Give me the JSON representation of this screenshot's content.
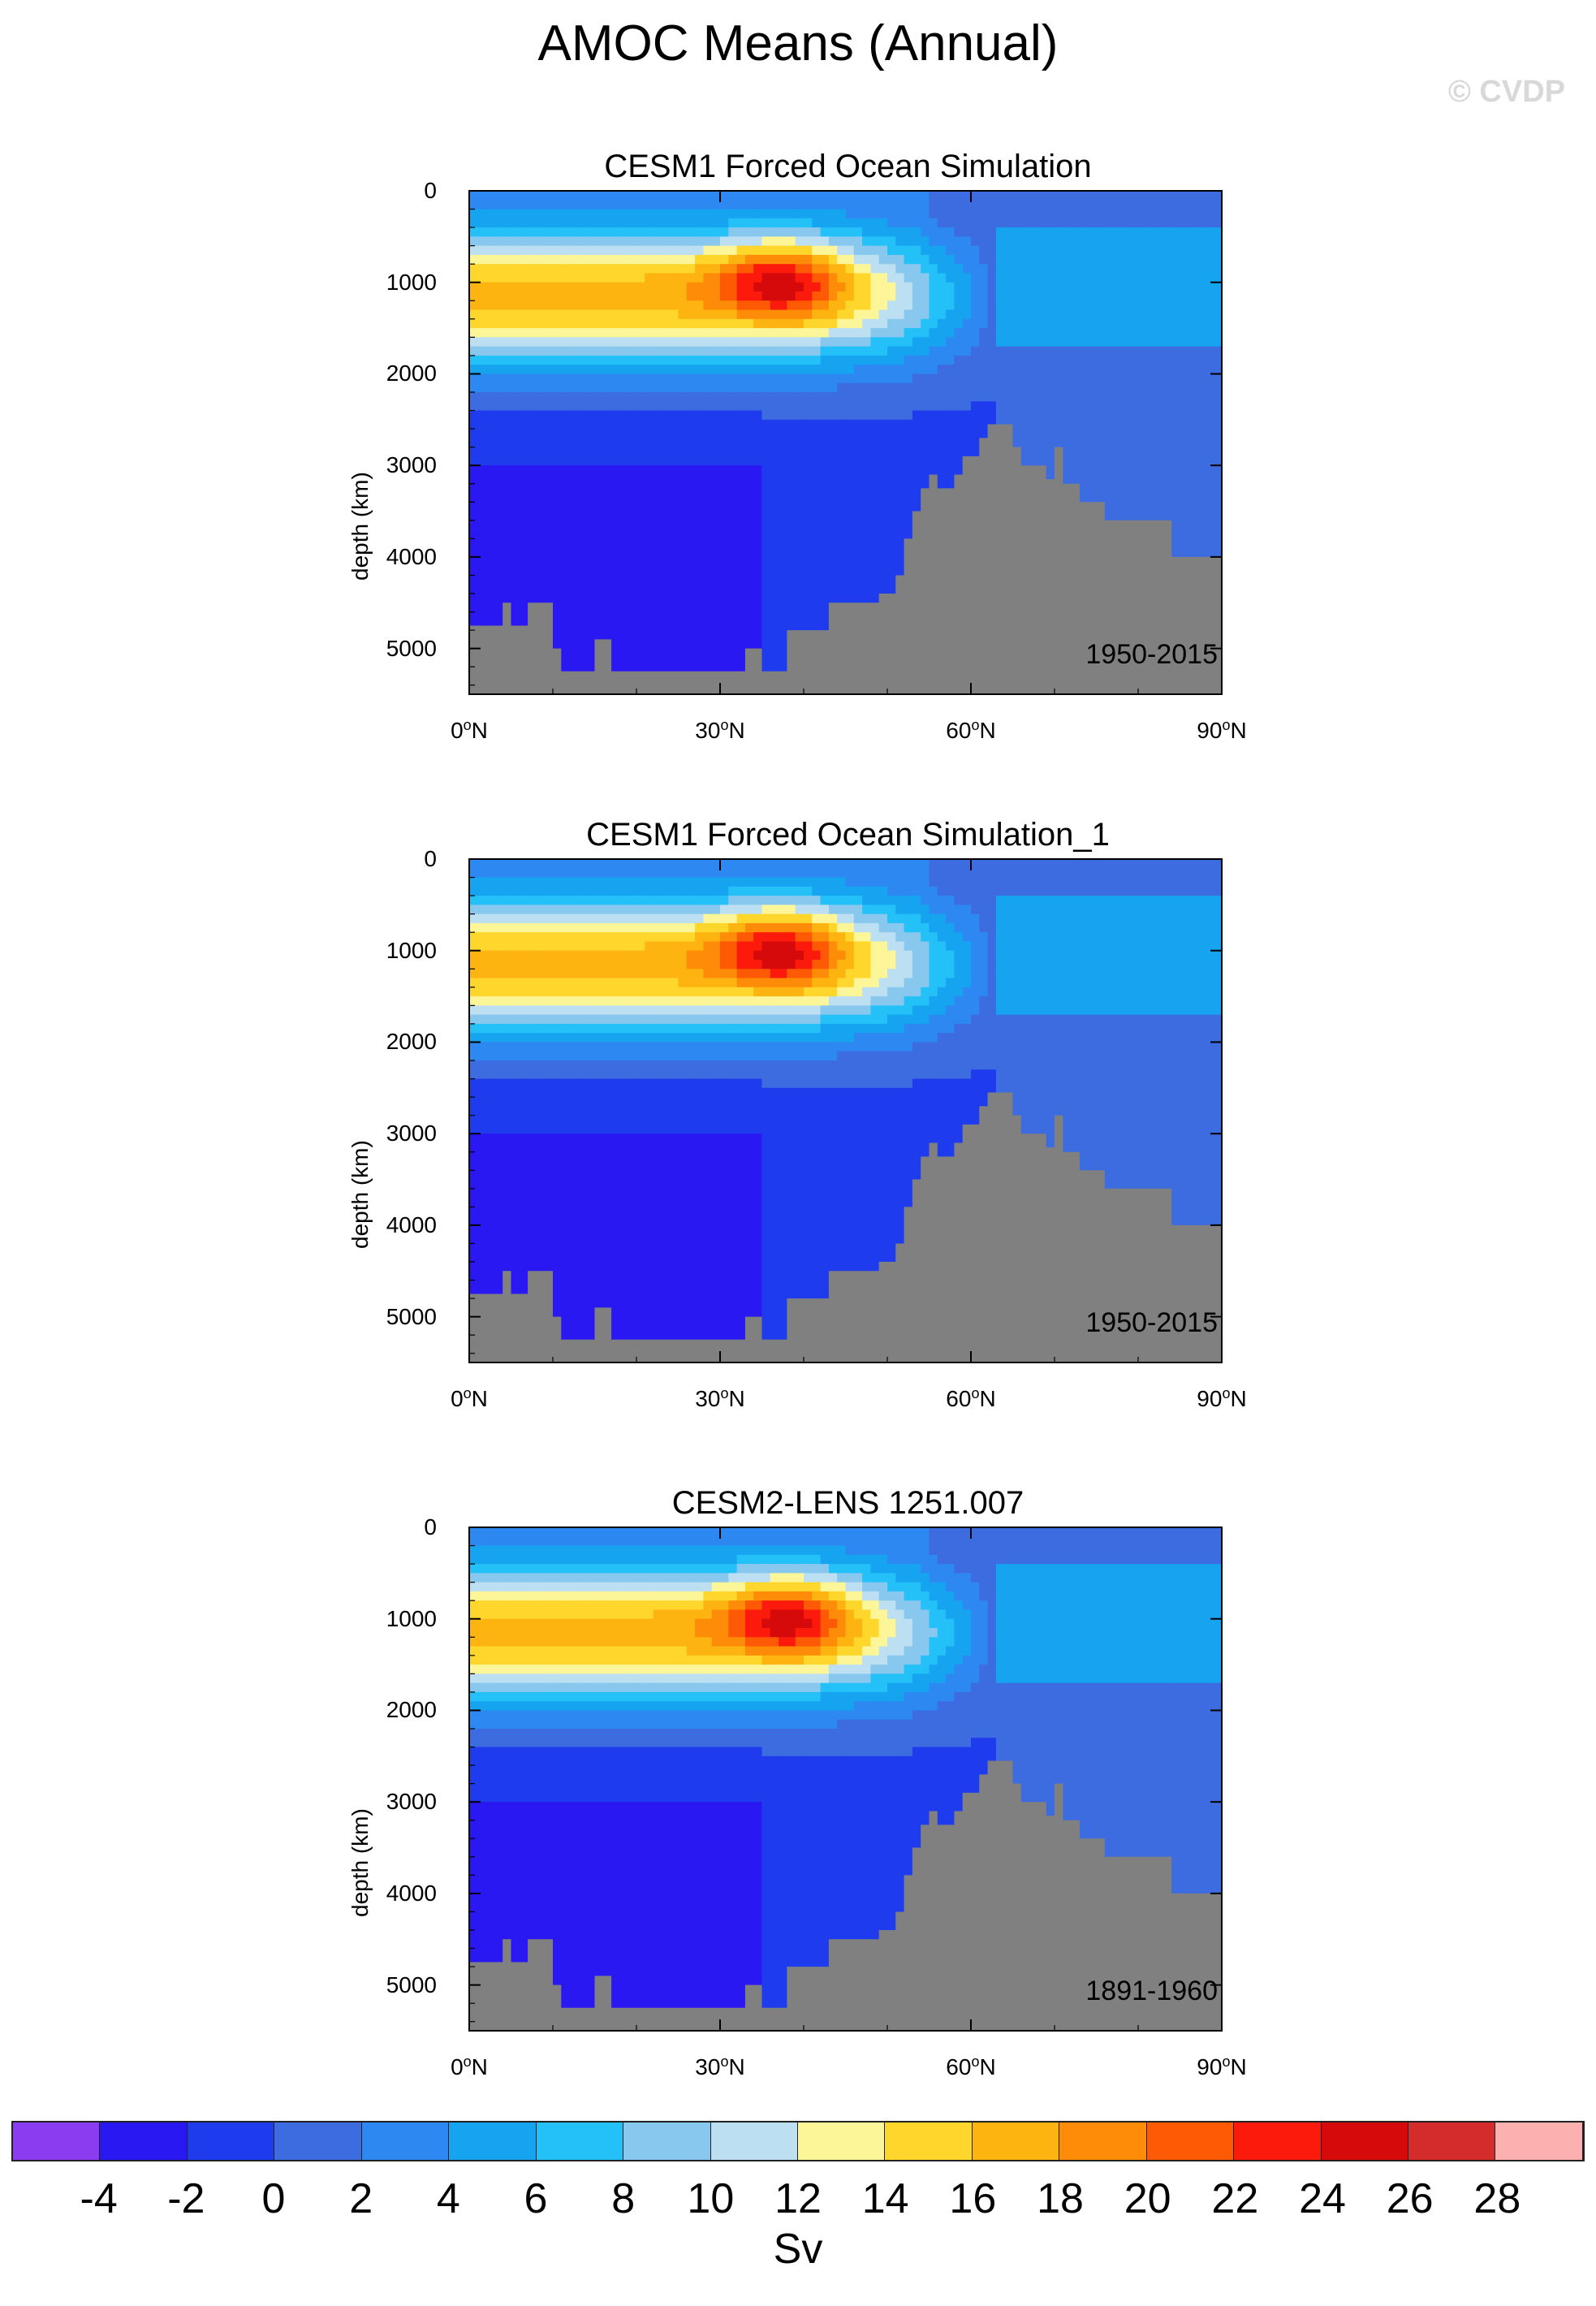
{
  "title": "AMOC Means (Annual)",
  "credit": "© CVDP",
  "chart_data": [
    {
      "type": "heatmap",
      "title": "CESM1 Forced Ocean Simulation",
      "period": "1950-2015",
      "ylabel": "depth (km)",
      "xlabel": "",
      "x_ticks": [
        "0",
        "30",
        "60",
        "90"
      ],
      "x_tick_suffix": "N",
      "y_ticks": [
        "0",
        "1000",
        "2000",
        "3000",
        "4000",
        "5000"
      ],
      "xlim": [
        0,
        90
      ],
      "ylim": [
        5500,
        0
      ],
      "max_value_sv": 25,
      "max_location": {
        "lat": 37,
        "depth": 950
      }
    },
    {
      "type": "heatmap",
      "title": "CESM1 Forced Ocean Simulation_1",
      "period": "1950-2015",
      "ylabel": "depth (km)",
      "xlabel": "",
      "x_ticks": [
        "0",
        "30",
        "60",
        "90"
      ],
      "x_tick_suffix": "N",
      "y_ticks": [
        "0",
        "1000",
        "2000",
        "3000",
        "4000",
        "5000"
      ],
      "xlim": [
        0,
        90
      ],
      "ylim": [
        5500,
        0
      ],
      "max_value_sv": 25,
      "max_location": {
        "lat": 37,
        "depth": 950
      }
    },
    {
      "type": "heatmap",
      "title": "CESM2-LENS 1251.007",
      "period": "1891-1960",
      "ylabel": "depth (km)",
      "xlabel": "",
      "x_ticks": [
        "0",
        "30",
        "60",
        "90"
      ],
      "x_tick_suffix": "N",
      "y_ticks": [
        "0",
        "1000",
        "2000",
        "3000",
        "4000",
        "5000"
      ],
      "xlim": [
        0,
        90
      ],
      "ylim": [
        5500,
        0
      ],
      "max_value_sv": 25,
      "max_location": {
        "lat": 38,
        "depth": 950
      }
    }
  ],
  "colorbar": {
    "labels": [
      "-4",
      "-2",
      "0",
      "2",
      "4",
      "6",
      "8",
      "10",
      "12",
      "14",
      "16",
      "18",
      "20",
      "22",
      "24",
      "26",
      "28"
    ],
    "colors": [
      "#8c3cf0",
      "#2a18f2",
      "#1e3cee",
      "#3c6ce0",
      "#2e88f2",
      "#16a4f0",
      "#24c0f8",
      "#88c8ee",
      "#bcdff2",
      "#fcf698",
      "#fed62c",
      "#fdb410",
      "#fe8c08",
      "#fe5a06",
      "#fb1a0c",
      "#d60a0a",
      "#d42c2c",
      "#fdb0b0"
    ],
    "units": "Sv"
  },
  "colors": {
    "land": "#808080",
    "contour_line": "#222222"
  }
}
